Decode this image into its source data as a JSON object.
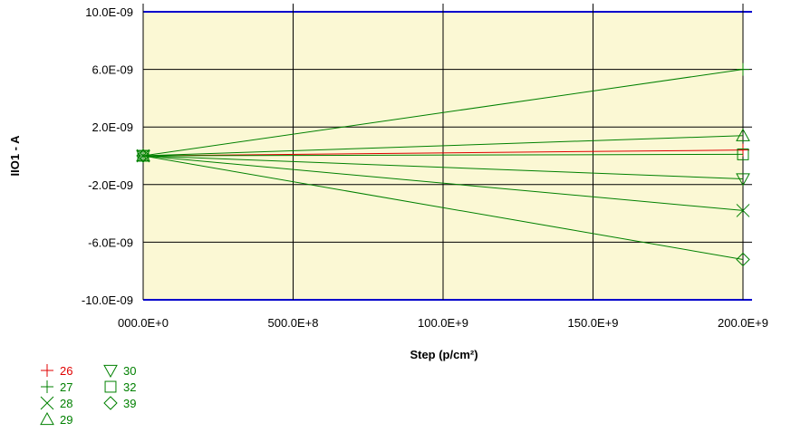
{
  "chart_data": {
    "type": "line",
    "title": "",
    "xlabel": "Step (p/cm²)",
    "ylabel": "IIO1 - A",
    "x_tick_labels": [
      "000.0E+0",
      "500.0E+8",
      "100.0E+9",
      "150.0E+9",
      "200.0E+9"
    ],
    "y_tick_labels": [
      "10.0E-09",
      "6.0E-09",
      "2.0E-09",
      "-2.0E-09",
      "-6.0E-09",
      "-10.0E-09"
    ],
    "xlim": [
      0,
      200000000000
    ],
    "ylim": [
      -1e-08,
      1e-08
    ],
    "x_ticks": [
      0,
      50000000000,
      100000000000,
      150000000000,
      200000000000
    ],
    "y_ticks": [
      1e-08,
      6e-09,
      2e-09,
      -2e-09,
      -6e-09,
      -1e-08
    ],
    "grid": true,
    "plot_background": "#fbf8d4",
    "legend_position": "bottom-left",
    "series": [
      {
        "name": "26",
        "marker": "plus",
        "color": "#e00000",
        "x": [
          0,
          200000000000
        ],
        "y": [
          0,
          4e-10
        ]
      },
      {
        "name": "27",
        "marker": "plus",
        "color": "#008000",
        "x": [
          0,
          200000000000
        ],
        "y": [
          0,
          6e-09
        ]
      },
      {
        "name": "28",
        "marker": "cross",
        "color": "#008000",
        "x": [
          0,
          200000000000
        ],
        "y": [
          0,
          -3.8e-09
        ]
      },
      {
        "name": "29",
        "marker": "triangle-up",
        "color": "#008000",
        "x": [
          0,
          200000000000
        ],
        "y": [
          0,
          1.4e-09
        ]
      },
      {
        "name": "30",
        "marker": "triangle-down",
        "color": "#008000",
        "x": [
          0,
          200000000000
        ],
        "y": [
          0,
          -1.6e-09
        ]
      },
      {
        "name": "32",
        "marker": "square",
        "color": "#008000",
        "x": [
          0,
          200000000000
        ],
        "y": [
          0,
          1e-10
        ]
      },
      {
        "name": "39",
        "marker": "diamond",
        "color": "#008000",
        "x": [
          0,
          200000000000
        ],
        "y": [
          0,
          -7.2e-09
        ]
      }
    ]
  }
}
